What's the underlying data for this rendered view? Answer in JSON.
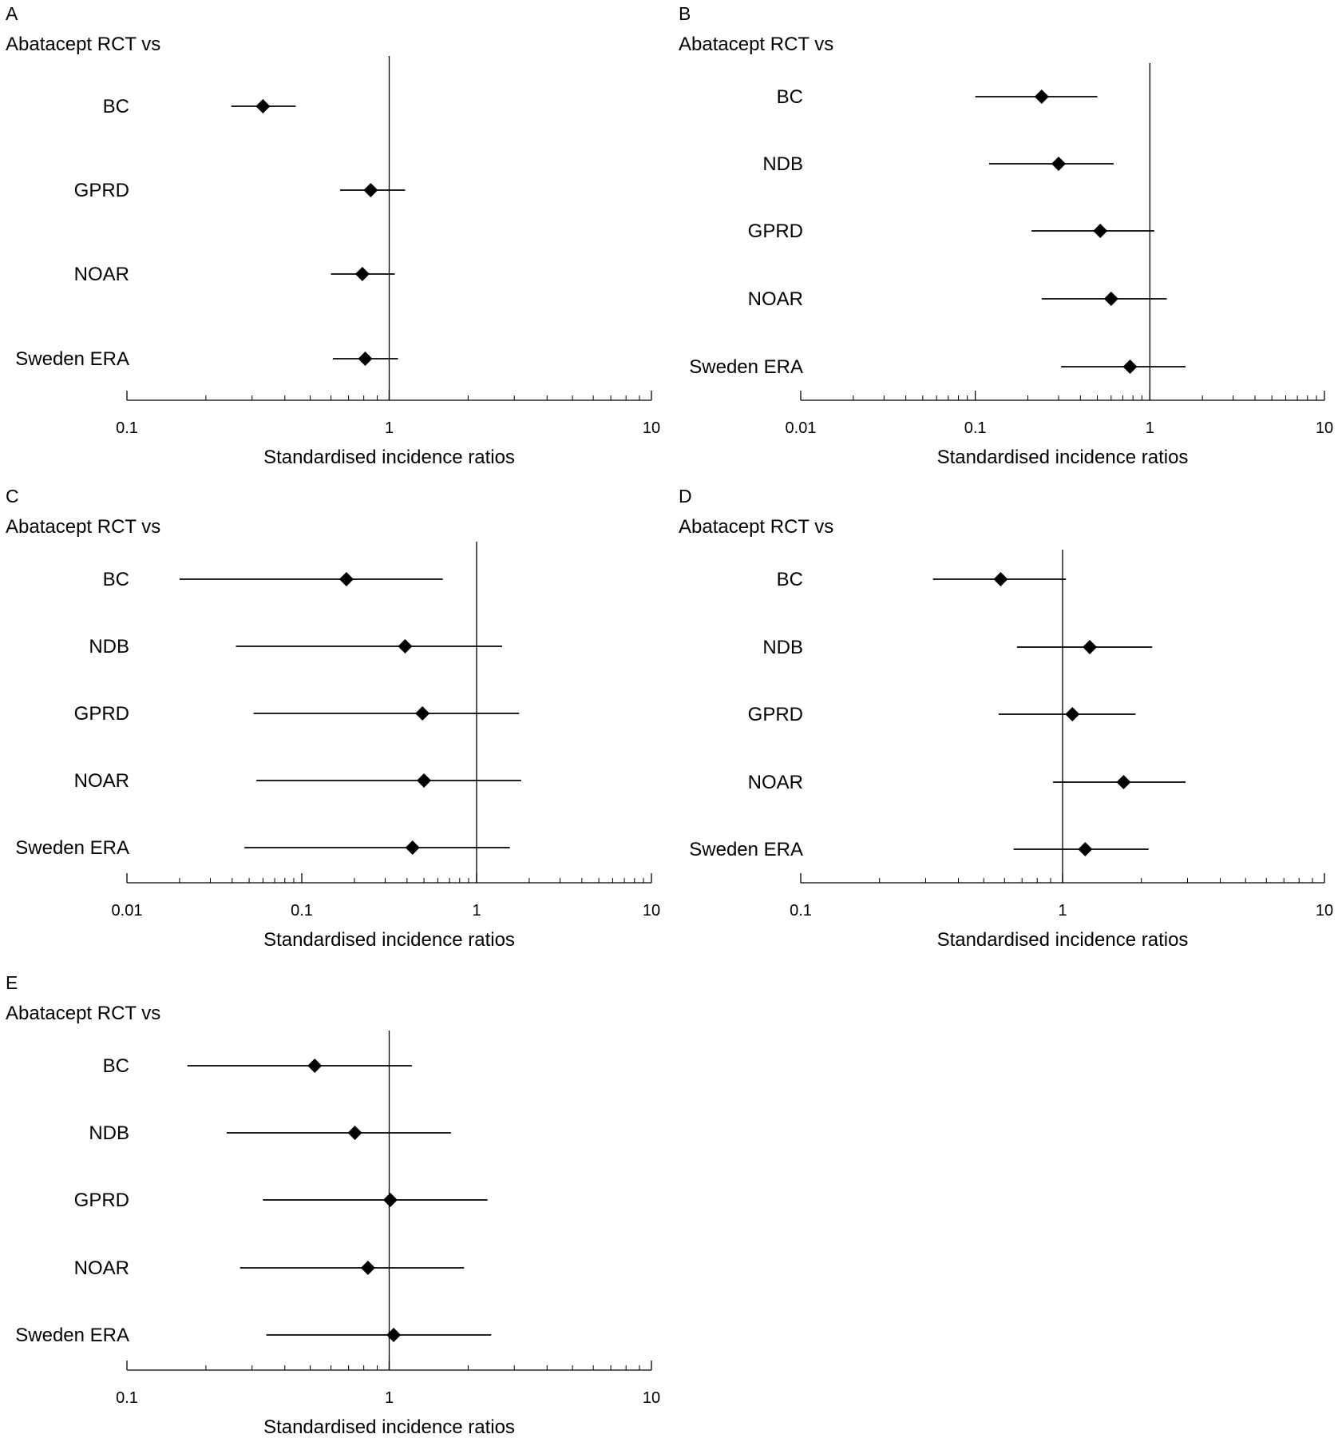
{
  "chart_data": [
    {
      "type": "forest",
      "panel_label": "A",
      "subtitle": "Abatacept RCT vs",
      "xlabel": "Standardised incidence ratios",
      "x_scale": "log",
      "xlim": [
        0.1,
        10
      ],
      "x_ticks": [
        {
          "value": 0.1,
          "label": "0.1"
        },
        {
          "value": 1,
          "label": "1"
        },
        {
          "value": 10,
          "label": "10"
        }
      ],
      "reference_line": 1,
      "rows": [
        {
          "label": "BC",
          "estimate": 0.33,
          "lower": 0.25,
          "upper": 0.44
        },
        {
          "label": "GPRD",
          "estimate": 0.85,
          "lower": 0.65,
          "upper": 1.15
        },
        {
          "label": "NOAR",
          "estimate": 0.79,
          "lower": 0.6,
          "upper": 1.05
        },
        {
          "label": "Sweden ERA",
          "estimate": 0.81,
          "lower": 0.61,
          "upper": 1.08
        }
      ]
    },
    {
      "type": "forest",
      "panel_label": "B",
      "subtitle": "Abatacept RCT vs",
      "xlabel": "Standardised incidence ratios",
      "x_scale": "log",
      "xlim": [
        0.01,
        10
      ],
      "x_ticks": [
        {
          "value": 0.01,
          "label": "0.01"
        },
        {
          "value": 0.1,
          "label": "0.1"
        },
        {
          "value": 1,
          "label": "1"
        },
        {
          "value": 10,
          "label": "10"
        }
      ],
      "reference_line": 1,
      "rows": [
        {
          "label": "BC",
          "estimate": 0.24,
          "lower": 0.1,
          "upper": 0.5
        },
        {
          "label": "NDB",
          "estimate": 0.3,
          "lower": 0.12,
          "upper": 0.62
        },
        {
          "label": "GPRD",
          "estimate": 0.52,
          "lower": 0.21,
          "upper": 1.06
        },
        {
          "label": "NOAR",
          "estimate": 0.6,
          "lower": 0.24,
          "upper": 1.25
        },
        {
          "label": "Sweden ERA",
          "estimate": 0.77,
          "lower": 0.31,
          "upper": 1.6
        }
      ]
    },
    {
      "type": "forest",
      "panel_label": "C",
      "subtitle": "Abatacept RCT vs",
      "xlabel": "Standardised incidence ratios",
      "x_scale": "log",
      "xlim": [
        0.01,
        10
      ],
      "x_ticks": [
        {
          "value": 0.01,
          "label": "0.01"
        },
        {
          "value": 0.1,
          "label": "0.1"
        },
        {
          "value": 1,
          "label": "1"
        },
        {
          "value": 10,
          "label": "10"
        }
      ],
      "reference_line": 1,
      "rows": [
        {
          "label": "BC",
          "estimate": 0.18,
          "lower": 0.02,
          "upper": 0.64
        },
        {
          "label": "NDB",
          "estimate": 0.39,
          "lower": 0.042,
          "upper": 1.4
        },
        {
          "label": "GPRD",
          "estimate": 0.49,
          "lower": 0.053,
          "upper": 1.75
        },
        {
          "label": "NOAR",
          "estimate": 0.5,
          "lower": 0.055,
          "upper": 1.8
        },
        {
          "label": "Sweden ERA",
          "estimate": 0.43,
          "lower": 0.047,
          "upper": 1.55
        }
      ]
    },
    {
      "type": "forest",
      "panel_label": "D",
      "subtitle": "Abatacept RCT vs",
      "xlabel": "Standardised incidence ratios",
      "x_scale": "log",
      "xlim": [
        0.1,
        10
      ],
      "x_ticks": [
        {
          "value": 0.1,
          "label": "0.1"
        },
        {
          "value": 1,
          "label": "1"
        },
        {
          "value": 10,
          "label": "10"
        }
      ],
      "reference_line": 1,
      "rows": [
        {
          "label": "BC",
          "estimate": 0.58,
          "lower": 0.32,
          "upper": 1.03
        },
        {
          "label": "NDB",
          "estimate": 1.27,
          "lower": 0.67,
          "upper": 2.2
        },
        {
          "label": "GPRD",
          "estimate": 1.09,
          "lower": 0.57,
          "upper": 1.9
        },
        {
          "label": "NOAR",
          "estimate": 1.71,
          "lower": 0.92,
          "upper": 2.95
        },
        {
          "label": "Sweden ERA",
          "estimate": 1.22,
          "lower": 0.65,
          "upper": 2.13
        }
      ]
    },
    {
      "type": "forest",
      "panel_label": "E",
      "subtitle": "Abatacept RCT vs",
      "xlabel": "Standardised incidence ratios",
      "x_scale": "log",
      "xlim": [
        0.1,
        10
      ],
      "x_ticks": [
        {
          "value": 0.1,
          "label": "0.1"
        },
        {
          "value": 1,
          "label": "1"
        },
        {
          "value": 10,
          "label": "10"
        }
      ],
      "reference_line": 1,
      "rows": [
        {
          "label": "BC",
          "estimate": 0.52,
          "lower": 0.17,
          "upper": 1.22
        },
        {
          "label": "NDB",
          "estimate": 0.74,
          "lower": 0.24,
          "upper": 1.72
        },
        {
          "label": "GPRD",
          "estimate": 1.01,
          "lower": 0.33,
          "upper": 2.37
        },
        {
          "label": "NOAR",
          "estimate": 0.83,
          "lower": 0.27,
          "upper": 1.93
        },
        {
          "label": "Sweden ERA",
          "estimate": 1.04,
          "lower": 0.34,
          "upper": 2.45
        }
      ]
    }
  ]
}
